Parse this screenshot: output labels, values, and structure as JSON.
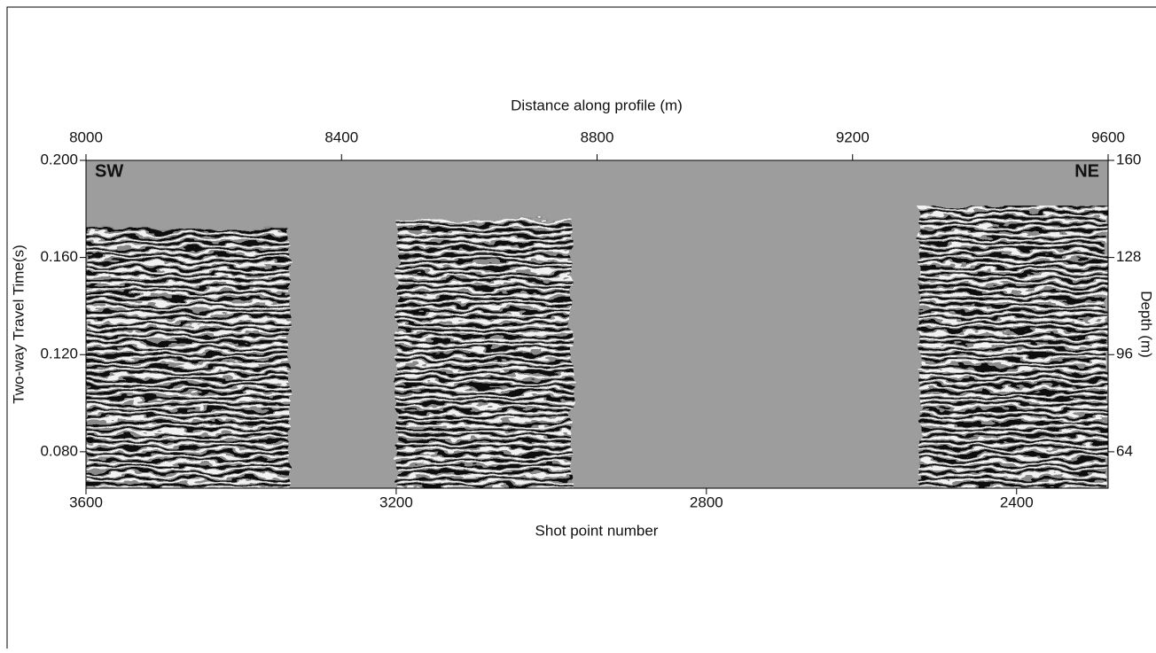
{
  "chart_data": {
    "type": "seismic-section",
    "annotations": [
      "SW",
      "NE"
    ],
    "xlabel": "Shot point number",
    "xlim": [
      3600,
      2282
    ],
    "xticks": [
      3600,
      3200,
      2800,
      2400
    ],
    "x2label": "Distance along profile (m)",
    "x2lim": [
      8000,
      9600
    ],
    "x2ticks": [
      8000,
      8400,
      8800,
      9200,
      9600
    ],
    "ylabel": "Two-way Travel Time(s)",
    "ylim": [
      0.065,
      0.2
    ],
    "yticks": [
      {
        "value": 0.08,
        "label": "0.080"
      },
      {
        "value": 0.12,
        "label": "0.120"
      },
      {
        "value": 0.16,
        "label": "0.160"
      },
      {
        "value": 0.2,
        "label": "0.200"
      }
    ],
    "y2label": "Depth (m)",
    "y2lim": [
      52,
      160
    ],
    "y2ticks": [
      64,
      96,
      128,
      160
    ]
  }
}
